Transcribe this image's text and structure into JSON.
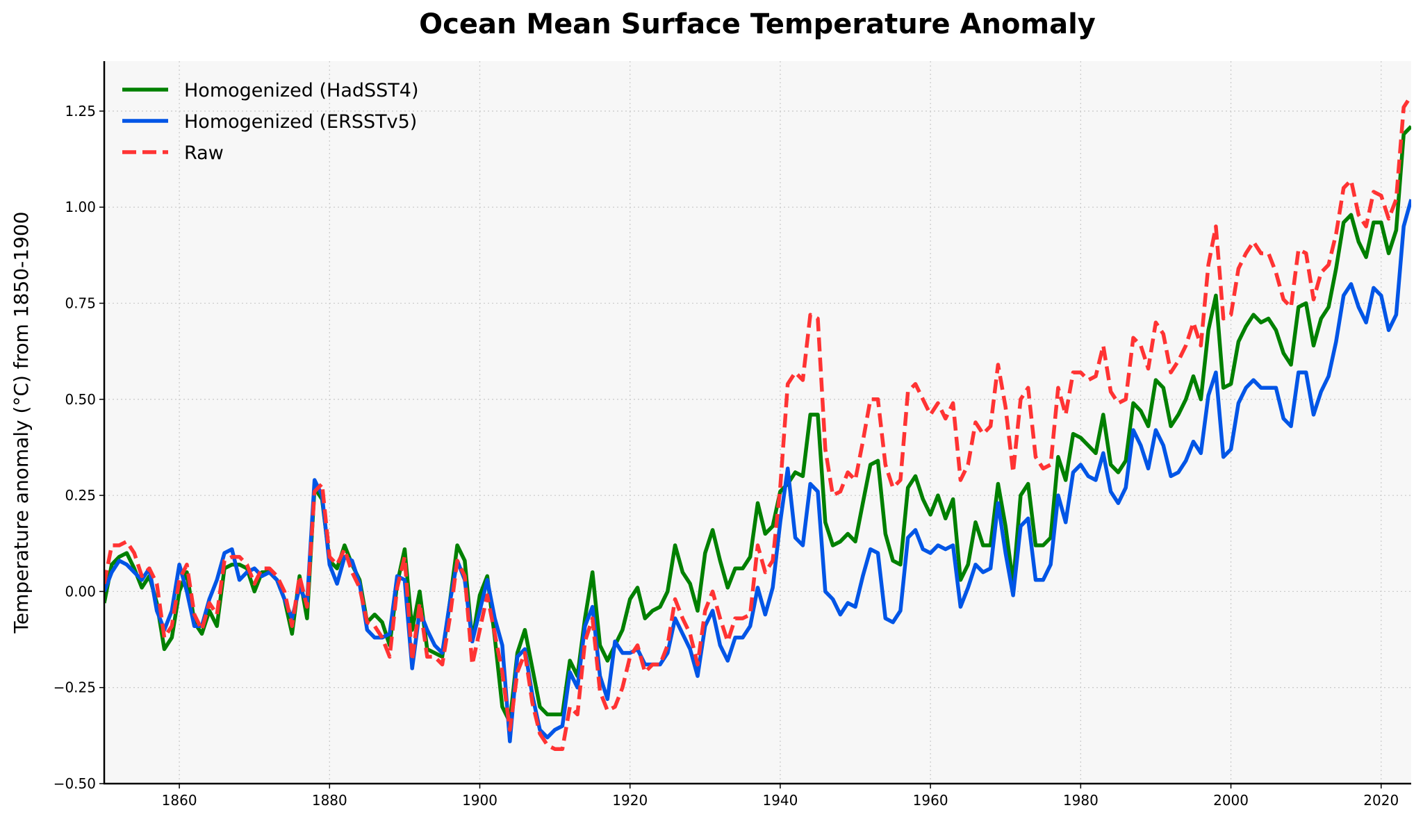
{
  "chart_data": {
    "type": "line",
    "title": "Ocean Mean Surface Temperature Anomaly",
    "xlabel": "",
    "ylabel": "Temperature anomaly (°C) from 1850-1900",
    "xlim": [
      1850,
      2024
    ],
    "ylim": [
      -0.5,
      1.38
    ],
    "xticks": [
      1860,
      1880,
      1900,
      1920,
      1940,
      1960,
      1980,
      2000,
      2020
    ],
    "yticks": [
      -0.5,
      -0.25,
      0.0,
      0.25,
      0.5,
      0.75,
      1.0,
      1.25
    ],
    "ytick_labels": [
      "−0.50",
      "−0.25",
      "0.00",
      "0.25",
      "0.50",
      "0.75",
      "1.00",
      "1.25"
    ],
    "grid": true,
    "legend_position": "top-left",
    "x_start": 1850,
    "series": [
      {
        "name": "Homogenized (HadSST4)",
        "color": "#008000",
        "style": "solid",
        "values": [
          -0.03,
          0.07,
          0.09,
          0.1,
          0.06,
          0.01,
          0.04,
          -0.03,
          -0.15,
          -0.12,
          0.0,
          0.05,
          -0.08,
          -0.11,
          -0.05,
          -0.09,
          0.06,
          0.07,
          0.07,
          0.06,
          0.0,
          0.05,
          0.05,
          0.03,
          -0.02,
          -0.11,
          0.04,
          -0.07,
          0.27,
          0.24,
          0.08,
          0.06,
          0.12,
          0.07,
          0.03,
          -0.08,
          -0.06,
          -0.08,
          -0.14,
          0.02,
          0.11,
          -0.1,
          0.0,
          -0.15,
          -0.16,
          -0.17,
          -0.03,
          0.12,
          0.08,
          -0.13,
          -0.01,
          0.04,
          -0.12,
          -0.3,
          -0.34,
          -0.16,
          -0.1,
          -0.2,
          -0.3,
          -0.32,
          -0.32,
          -0.32,
          -0.18,
          -0.22,
          -0.07,
          0.05,
          -0.14,
          -0.18,
          -0.14,
          -0.1,
          -0.02,
          0.01,
          -0.07,
          -0.05,
          -0.04,
          0.0,
          0.12,
          0.05,
          0.02,
          -0.05,
          0.1,
          0.16,
          0.08,
          0.01,
          0.06,
          0.06,
          0.09,
          0.23,
          0.15,
          0.17,
          0.26,
          0.28,
          0.31,
          0.3,
          0.46,
          0.46,
          0.18,
          0.12,
          0.13,
          0.15,
          0.13,
          0.23,
          0.33,
          0.34,
          0.15,
          0.08,
          0.07,
          0.27,
          0.3,
          0.24,
          0.2,
          0.25,
          0.19,
          0.24,
          0.03,
          0.07,
          0.18,
          0.12,
          0.12,
          0.28,
          0.17,
          0.02,
          0.25,
          0.28,
          0.12,
          0.12,
          0.14,
          0.35,
          0.29,
          0.41,
          0.4,
          0.38,
          0.36,
          0.46,
          0.33,
          0.31,
          0.34,
          0.49,
          0.47,
          0.43,
          0.55,
          0.53,
          0.43,
          0.46,
          0.5,
          0.56,
          0.5,
          0.68,
          0.77,
          0.53,
          0.54,
          0.65,
          0.69,
          0.72,
          0.7,
          0.71,
          0.68,
          0.62,
          0.59,
          0.74,
          0.75,
          0.64,
          0.71,
          0.74,
          0.84,
          0.96,
          0.98,
          0.91,
          0.87,
          0.96,
          0.96,
          0.88,
          0.94,
          1.19,
          1.21
        ]
      },
      {
        "name": "Homogenized (ERSSTv5)",
        "color": "#0055e6",
        "style": "solid",
        "values": [
          0.0,
          0.05,
          0.08,
          0.07,
          0.05,
          0.03,
          0.06,
          -0.05,
          -0.1,
          -0.05,
          0.07,
          0.0,
          -0.09,
          -0.09,
          -0.02,
          0.03,
          0.1,
          0.11,
          0.03,
          0.05,
          0.06,
          0.04,
          0.05,
          0.03,
          -0.02,
          -0.07,
          0.01,
          -0.03,
          0.29,
          0.25,
          0.07,
          0.02,
          0.09,
          0.08,
          0.02,
          -0.1,
          -0.12,
          -0.12,
          -0.11,
          0.04,
          0.03,
          -0.2,
          -0.05,
          -0.1,
          -0.14,
          -0.16,
          -0.03,
          0.08,
          0.03,
          -0.13,
          -0.05,
          0.03,
          -0.07,
          -0.14,
          -0.39,
          -0.17,
          -0.15,
          -0.27,
          -0.36,
          -0.38,
          -0.36,
          -0.35,
          -0.21,
          -0.25,
          -0.09,
          -0.04,
          -0.22,
          -0.28,
          -0.13,
          -0.16,
          -0.16,
          -0.15,
          -0.19,
          -0.19,
          -0.19,
          -0.16,
          -0.07,
          -0.11,
          -0.15,
          -0.22,
          -0.09,
          -0.05,
          -0.14,
          -0.18,
          -0.12,
          -0.12,
          -0.09,
          0.01,
          -0.06,
          0.01,
          0.18,
          0.32,
          0.14,
          0.12,
          0.28,
          0.26,
          0.0,
          -0.02,
          -0.06,
          -0.03,
          -0.04,
          0.04,
          0.11,
          0.1,
          -0.07,
          -0.08,
          -0.05,
          0.14,
          0.16,
          0.11,
          0.1,
          0.12,
          0.11,
          0.12,
          -0.04,
          0.01,
          0.07,
          0.05,
          0.06,
          0.23,
          0.1,
          -0.01,
          0.17,
          0.19,
          0.03,
          0.03,
          0.07,
          0.25,
          0.18,
          0.31,
          0.33,
          0.3,
          0.29,
          0.36,
          0.26,
          0.23,
          0.27,
          0.42,
          0.38,
          0.32,
          0.42,
          0.38,
          0.3,
          0.31,
          0.34,
          0.39,
          0.36,
          0.51,
          0.57,
          0.35,
          0.37,
          0.49,
          0.53,
          0.55,
          0.53,
          0.53,
          0.53,
          0.45,
          0.43,
          0.57,
          0.57,
          0.46,
          0.52,
          0.56,
          0.65,
          0.77,
          0.8,
          0.74,
          0.7,
          0.79,
          0.77,
          0.68,
          0.72,
          0.95,
          1.02
        ]
      },
      {
        "name": "Raw",
        "color": "#ff3333",
        "style": "dashed",
        "values": [
          0.02,
          0.12,
          0.12,
          0.13,
          0.1,
          0.04,
          0.06,
          0.02,
          -0.12,
          -0.09,
          0.03,
          0.07,
          -0.06,
          -0.1,
          -0.03,
          -0.06,
          0.08,
          0.09,
          0.09,
          0.07,
          0.02,
          0.06,
          0.06,
          0.04,
          0.0,
          -0.09,
          0.04,
          -0.04,
          0.26,
          0.28,
          0.09,
          0.07,
          0.11,
          0.05,
          0.01,
          -0.08,
          -0.09,
          -0.12,
          -0.17,
          0.01,
          0.09,
          -0.18,
          -0.03,
          -0.17,
          -0.17,
          -0.19,
          -0.07,
          0.08,
          0.04,
          -0.19,
          -0.1,
          -0.01,
          -0.11,
          -0.21,
          -0.36,
          -0.21,
          -0.16,
          -0.29,
          -0.37,
          -0.4,
          -0.41,
          -0.41,
          -0.3,
          -0.32,
          -0.13,
          -0.07,
          -0.26,
          -0.31,
          -0.3,
          -0.25,
          -0.17,
          -0.14,
          -0.21,
          -0.19,
          -0.19,
          -0.14,
          -0.02,
          -0.07,
          -0.11,
          -0.19,
          -0.05,
          0.0,
          -0.07,
          -0.13,
          -0.07,
          -0.07,
          -0.06,
          0.12,
          0.05,
          0.08,
          0.27,
          0.54,
          0.57,
          0.55,
          0.72,
          0.71,
          0.37,
          0.25,
          0.26,
          0.31,
          0.29,
          0.39,
          0.5,
          0.5,
          0.33,
          0.27,
          0.29,
          0.52,
          0.54,
          0.5,
          0.46,
          0.49,
          0.45,
          0.49,
          0.29,
          0.33,
          0.44,
          0.41,
          0.43,
          0.59,
          0.48,
          0.31,
          0.5,
          0.53,
          0.35,
          0.32,
          0.33,
          0.53,
          0.46,
          0.57,
          0.57,
          0.55,
          0.56,
          0.64,
          0.52,
          0.49,
          0.5,
          0.66,
          0.64,
          0.58,
          0.7,
          0.67,
          0.57,
          0.6,
          0.64,
          0.7,
          0.64,
          0.85,
          0.95,
          0.71,
          0.72,
          0.84,
          0.88,
          0.91,
          0.88,
          0.88,
          0.83,
          0.76,
          0.74,
          0.89,
          0.88,
          0.76,
          0.83,
          0.85,
          0.93,
          1.05,
          1.07,
          0.98,
          0.95,
          1.04,
          1.03,
          0.97,
          1.02,
          1.26,
          1.29
        ]
      }
    ]
  }
}
